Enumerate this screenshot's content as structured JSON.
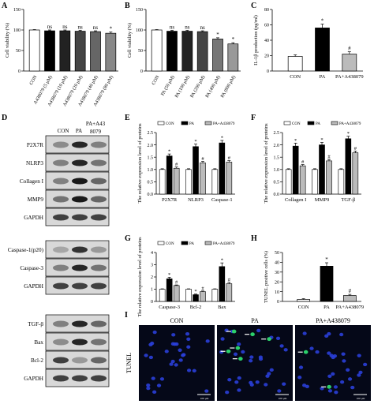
{
  "panel_letters": [
    "A",
    "B",
    "C",
    "D",
    "E",
    "F",
    "G",
    "H",
    "I"
  ],
  "chart_data": [
    {
      "panel": "A",
      "type": "bar",
      "ylabel": "Cell viability (%)",
      "ylim": [
        0,
        150
      ],
      "yticks": [
        0,
        50,
        100,
        150
      ],
      "categories": [
        "CON",
        "A438079 (5 μM)",
        "A438079 (10 μM)",
        "A438079 (20 μM)",
        "A438079 (40 μM)",
        "A438079 (80 μM)"
      ],
      "values": [
        100,
        98,
        98,
        97,
        96,
        92
      ],
      "errors": [
        1,
        2,
        2,
        2,
        2,
        3
      ],
      "colors": [
        "#ffffff",
        "#000000",
        "#222222",
        "#444444",
        "#666666",
        "#888888"
      ],
      "marks": [
        "",
        "ns",
        "ns",
        "ns",
        "ns",
        "*"
      ]
    },
    {
      "panel": "B",
      "type": "bar",
      "ylabel": "Cell viability (%)",
      "ylim": [
        0,
        150
      ],
      "yticks": [
        0,
        50,
        100,
        150
      ],
      "categories": [
        "CON",
        "PA (50 μM)",
        "PA (100 μM)",
        "PA (200 μM)",
        "PA (400 μM)",
        "PA (800 μM)"
      ],
      "values": [
        100,
        97,
        97,
        96,
        78,
        66
      ],
      "errors": [
        1,
        2,
        2,
        2,
        3,
        3
      ],
      "colors": [
        "#ffffff",
        "#000000",
        "#222222",
        "#444444",
        "#777777",
        "#999999"
      ],
      "marks": [
        "",
        "ns",
        "ns",
        "ns",
        "*",
        "*"
      ]
    },
    {
      "panel": "C",
      "type": "bar",
      "ylabel": "IL-1β production (pg/ml)",
      "ylim": [
        0,
        80
      ],
      "yticks": [
        0,
        20,
        40,
        60,
        80
      ],
      "categories": [
        "CON",
        "PA",
        "PA+A438079"
      ],
      "values": [
        19,
        56,
        22
      ],
      "errors": [
        2,
        5,
        3
      ],
      "colors": [
        "#ffffff",
        "#000000",
        "#bbbbbb"
      ],
      "marks": [
        "",
        "*",
        "#"
      ]
    },
    {
      "panel": "E",
      "type": "bar",
      "ylabel": "The relative expression level of proteins",
      "ylim": [
        0,
        2.5
      ],
      "yticks": [
        0.0,
        0.5,
        1.0,
        1.5,
        2.0,
        2.5
      ],
      "legend": [
        "CON",
        "PA",
        "PA+A438079"
      ],
      "categories": [
        "P2X7R",
        "NLRP3",
        "Caspase-1"
      ],
      "series": [
        {
          "name": "CON",
          "values": [
            1.0,
            1.0,
            1.0
          ],
          "errors": [
            0.03,
            0.03,
            0.03
          ],
          "marks": [
            "",
            "",
            ""
          ]
        },
        {
          "name": "PA",
          "values": [
            1.55,
            1.93,
            2.08
          ],
          "errors": [
            0.08,
            0.1,
            0.1
          ],
          "marks": [
            "*",
            "*",
            "*"
          ]
        },
        {
          "name": "PA+A438079",
          "values": [
            1.05,
            1.27,
            1.3
          ],
          "errors": [
            0.05,
            0.06,
            0.06
          ],
          "marks": [
            "#",
            "#",
            "#"
          ]
        }
      ]
    },
    {
      "panel": "F",
      "type": "bar",
      "ylabel": "The relative expression level of proteins",
      "ylim": [
        0,
        2.5
      ],
      "yticks": [
        0.0,
        0.5,
        1.0,
        1.5,
        2.0,
        2.5
      ],
      "legend": [
        "CON",
        "PA",
        "PA+A438079"
      ],
      "categories": [
        "Collagen I",
        "MMP9",
        "TGF-β"
      ],
      "series": [
        {
          "name": "CON",
          "values": [
            1.0,
            1.0,
            1.0
          ],
          "errors": [
            0.03,
            0.03,
            0.03
          ],
          "marks": [
            "",
            "",
            ""
          ]
        },
        {
          "name": "PA",
          "values": [
            1.95,
            2.0,
            2.25
          ],
          "errors": [
            0.12,
            0.1,
            0.1
          ],
          "marks": [
            "*",
            "*",
            "*"
          ]
        },
        {
          "name": "PA+A438079",
          "values": [
            1.15,
            1.35,
            1.68
          ],
          "errors": [
            0.05,
            0.06,
            0.07
          ],
          "marks": [
            "#",
            "#",
            "#"
          ]
        }
      ]
    },
    {
      "panel": "G",
      "type": "bar",
      "ylabel": "The relative expression level of proteins",
      "ylim": [
        0,
        4
      ],
      "yticks": [
        0,
        1,
        2,
        3,
        4
      ],
      "legend": [
        "CON",
        "PA",
        "PA+A438079"
      ],
      "categories": [
        "Caspase-3",
        "Bcl-2",
        "Bax"
      ],
      "series": [
        {
          "name": "CON",
          "values": [
            1.0,
            1.0,
            1.0
          ],
          "errors": [
            0.03,
            0.03,
            0.03
          ],
          "marks": [
            "",
            "",
            ""
          ]
        },
        {
          "name": "PA",
          "values": [
            1.85,
            0.55,
            2.85
          ],
          "errors": [
            0.12,
            0.05,
            0.3
          ],
          "marks": [
            "*",
            "*",
            "*"
          ]
        },
        {
          "name": "PA+A438079",
          "values": [
            1.3,
            0.8,
            1.45
          ],
          "errors": [
            0.05,
            0.05,
            0.1
          ],
          "marks": [
            "#",
            "#",
            "#"
          ]
        }
      ]
    },
    {
      "panel": "H",
      "type": "bar",
      "ylabel": "TUNEL positive cells (%)",
      "ylim": [
        0,
        50
      ],
      "yticks": [
        0,
        10,
        20,
        30,
        40,
        50
      ],
      "categories": [
        "CON",
        "PA",
        "PA+A438079"
      ],
      "values": [
        2,
        36,
        6
      ],
      "errors": [
        0.8,
        3.5,
        1.2
      ],
      "colors": [
        "#ffffff",
        "#000000",
        "#bbbbbb"
      ],
      "marks": [
        "",
        "*",
        "#"
      ]
    }
  ],
  "western": {
    "columns": [
      "CON",
      "PA",
      "PA+A43",
      "8079"
    ],
    "labels": [
      "P2X7R",
      "NLRP3",
      "Collagen I",
      "MMP9",
      "GAPDH",
      "Caspase-1(p20)",
      "Caspase-3",
      "GAPDH",
      "TGF-β",
      "Bax",
      "Bcl-2",
      "GAPDH"
    ]
  },
  "tunel": {
    "columns": [
      "CON",
      "PA",
      "PA+A438079"
    ],
    "row_label": "TUNEL",
    "scale_bar": "100 μm"
  },
  "colors": {
    "blot_bg": "#d8d8d8",
    "micro_bg": "#050818",
    "nuclei": "#2a3fd8",
    "positive": "#2bd06a",
    "arrow": "#ffffff"
  }
}
